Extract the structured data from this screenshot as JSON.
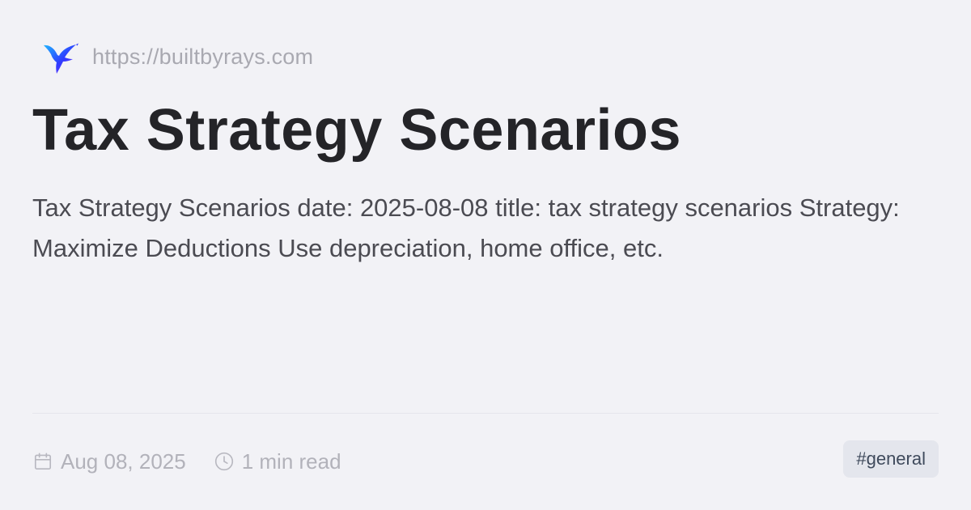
{
  "site": {
    "logo_icon": "hummingbird-logo-icon",
    "url": "https://builtbyrays.com"
  },
  "post": {
    "title": "Tax Strategy Scenarios",
    "description": "Tax Strategy Scenarios date: 2025-08-08 title: tax strategy scenarios Strategy: Maximize Deductions Use depreciation, home office, etc."
  },
  "meta": {
    "date": "Aug 08, 2025",
    "date_icon": "calendar-icon",
    "read_time": "1 min read",
    "read_time_icon": "clock-icon"
  },
  "tag": "#general",
  "colors": {
    "background": "#f2f2f6",
    "title": "#242428",
    "body_text": "#4b4b52",
    "muted_text": "#a9a9b1",
    "tag_background": "#e4e6ed",
    "tag_text": "#3f4a5c"
  }
}
